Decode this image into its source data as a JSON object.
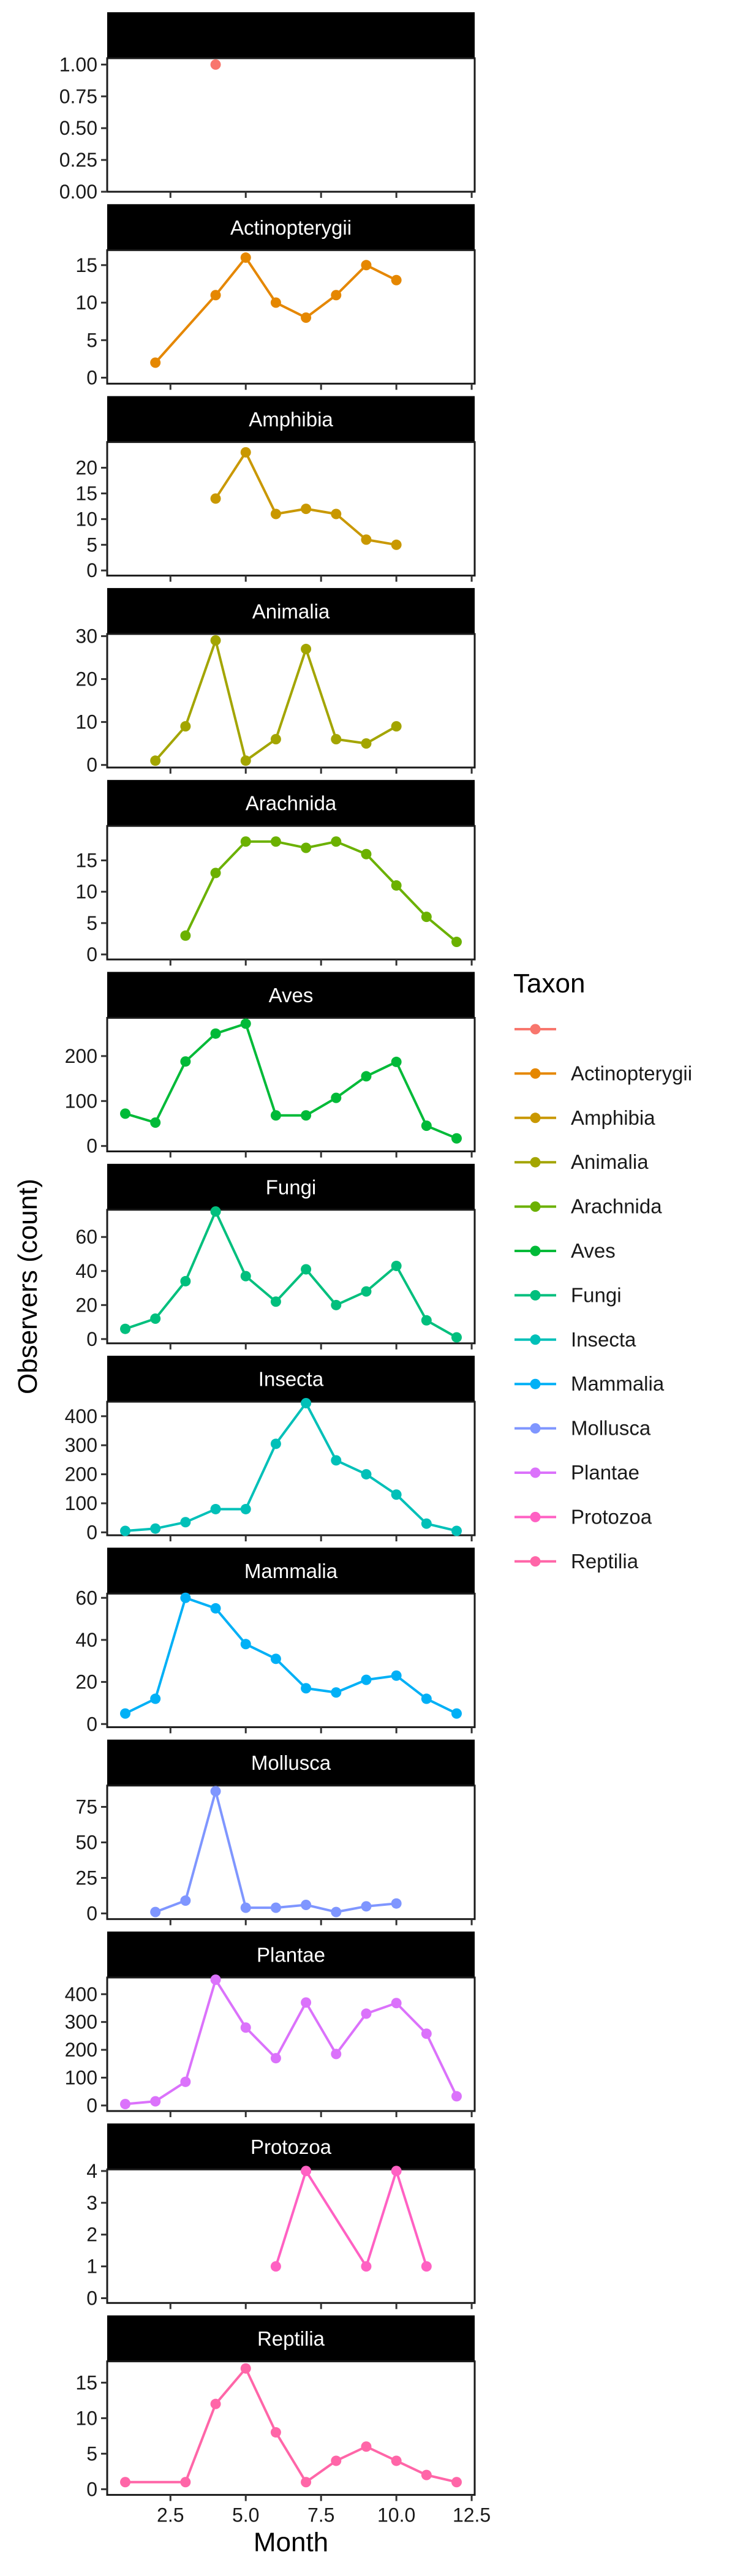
{
  "chart_data": {
    "type": "line",
    "facet_by": "Taxon",
    "xlabel": "Month",
    "ylabel": "Observers (count)",
    "x_ticks": [
      2.5,
      5.0,
      7.5,
      10.0,
      12.5
    ],
    "x_tick_labels": [
      "2.5",
      "5.0",
      "7.5",
      "10.0",
      "12.5"
    ],
    "xlim": [
      0.4,
      12.6
    ],
    "legend": {
      "title": "Taxon",
      "position": "right"
    },
    "grid": false,
    "panels": [
      {
        "name": "",
        "color": "#F8766D",
        "ylim": [
          0,
          1.05
        ],
        "ticks": [
          0,
          0.25,
          0.5,
          0.75,
          1
        ],
        "tick_labels": [
          "0.00",
          "0.25",
          "0.50",
          "0.75",
          "1.00"
        ],
        "points": [
          [
            4,
            1
          ]
        ]
      },
      {
        "name": "Actinopterygii",
        "color": "#E58700",
        "ylim": [
          -0.8,
          17
        ],
        "ticks": [
          0,
          5,
          10,
          15
        ],
        "tick_labels": [
          "0",
          "5",
          "10",
          "15"
        ],
        "points": [
          [
            2,
            2
          ],
          [
            4,
            11
          ],
          [
            5,
            16
          ],
          [
            6,
            10
          ],
          [
            7,
            8
          ],
          [
            8,
            11
          ],
          [
            9,
            15
          ],
          [
            10,
            13
          ]
        ]
      },
      {
        "name": "Amphibia",
        "color": "#C99800",
        "ylim": [
          -1,
          25
        ],
        "ticks": [
          0,
          5,
          10,
          15,
          20
        ],
        "tick_labels": [
          "0",
          "5",
          "10",
          "15",
          "20"
        ],
        "points": [
          [
            4,
            14
          ],
          [
            5,
            23
          ],
          [
            6,
            11
          ],
          [
            7,
            12
          ],
          [
            8,
            11
          ],
          [
            9,
            6
          ],
          [
            10,
            5
          ]
        ]
      },
      {
        "name": "Animalia",
        "color": "#A3A500",
        "ylim": [
          -0.6,
          30.5
        ],
        "ticks": [
          0,
          10,
          20,
          30
        ],
        "tick_labels": [
          "0",
          "10",
          "20",
          "30"
        ],
        "points": [
          [
            2,
            1
          ],
          [
            3,
            9
          ],
          [
            4,
            29
          ],
          [
            5,
            1
          ],
          [
            6,
            6
          ],
          [
            7,
            27
          ],
          [
            8,
            6
          ],
          [
            9,
            5
          ],
          [
            10,
            9
          ]
        ]
      },
      {
        "name": "Arachnida",
        "color": "#6BB100",
        "ylim": [
          -0.8,
          20.5
        ],
        "ticks": [
          0,
          5,
          10,
          15
        ],
        "tick_labels": [
          "0",
          "5",
          "10",
          "15"
        ],
        "points": [
          [
            3,
            3
          ],
          [
            4,
            13
          ],
          [
            5,
            18
          ],
          [
            6,
            18
          ],
          [
            7,
            17
          ],
          [
            8,
            18
          ],
          [
            9,
            16
          ],
          [
            10,
            11
          ],
          [
            11,
            6
          ],
          [
            12,
            2
          ]
        ]
      },
      {
        "name": "Aves",
        "color": "#00BA38",
        "ylim": [
          -12,
          285
        ],
        "ticks": [
          0,
          100,
          200
        ],
        "tick_labels": [
          "0",
          "100",
          "200"
        ],
        "points": [
          [
            1,
            72
          ],
          [
            2,
            52
          ],
          [
            3,
            188
          ],
          [
            4,
            250
          ],
          [
            5,
            272
          ],
          [
            6,
            68
          ],
          [
            7,
            68
          ],
          [
            8,
            107
          ],
          [
            9,
            155
          ],
          [
            10,
            187
          ],
          [
            11,
            45
          ],
          [
            12,
            17
          ]
        ]
      },
      {
        "name": "Fungi",
        "color": "#00BF7D",
        "ylim": [
          -2.5,
          76
        ],
        "ticks": [
          0,
          20,
          40,
          60
        ],
        "tick_labels": [
          "0",
          "20",
          "40",
          "60"
        ],
        "points": [
          [
            1,
            6
          ],
          [
            2,
            12
          ],
          [
            3,
            34
          ],
          [
            4,
            75
          ],
          [
            5,
            37
          ],
          [
            6,
            22
          ],
          [
            7,
            41
          ],
          [
            8,
            20
          ],
          [
            9,
            28
          ],
          [
            10,
            43
          ],
          [
            11,
            11
          ],
          [
            12,
            1
          ]
        ]
      },
      {
        "name": "Insecta",
        "color": "#00C0B8",
        "ylim": [
          -10,
          450
        ],
        "ticks": [
          0,
          100,
          200,
          300,
          400
        ],
        "tick_labels": [
          "0",
          "100",
          "200",
          "300",
          "400"
        ],
        "points": [
          [
            1,
            5
          ],
          [
            2,
            13
          ],
          [
            3,
            35
          ],
          [
            4,
            80
          ],
          [
            5,
            80
          ],
          [
            6,
            305
          ],
          [
            7,
            445
          ],
          [
            8,
            248
          ],
          [
            9,
            200
          ],
          [
            10,
            130
          ],
          [
            11,
            30
          ],
          [
            12,
            5
          ]
        ]
      },
      {
        "name": "Mammalia",
        "color": "#00B0F6",
        "ylim": [
          -1.5,
          62
        ],
        "ticks": [
          0,
          20,
          40,
          60
        ],
        "tick_labels": [
          "0",
          "20",
          "40",
          "60"
        ],
        "points": [
          [
            1,
            5
          ],
          [
            2,
            12
          ],
          [
            3,
            60
          ],
          [
            4,
            55
          ],
          [
            5,
            38
          ],
          [
            6,
            31
          ],
          [
            7,
            17
          ],
          [
            8,
            15
          ],
          [
            9,
            21
          ],
          [
            10,
            23
          ],
          [
            11,
            12
          ],
          [
            12,
            5
          ]
        ]
      },
      {
        "name": "Mollusca",
        "color": "#7F96FF",
        "ylim": [
          -4,
          90
        ],
        "ticks": [
          0,
          25,
          50,
          75
        ],
        "tick_labels": [
          "0",
          "25",
          "50",
          "75"
        ],
        "points": [
          [
            2,
            1
          ],
          [
            3,
            9
          ],
          [
            4,
            86
          ],
          [
            5,
            4
          ],
          [
            6,
            4
          ],
          [
            7,
            6
          ],
          [
            8,
            1
          ],
          [
            9,
            5
          ],
          [
            10,
            7
          ]
        ]
      },
      {
        "name": "Plantae",
        "color": "#DB72FB",
        "ylim": [
          -20,
          460
        ],
        "ticks": [
          0,
          100,
          200,
          300,
          400
        ],
        "tick_labels": [
          "0",
          "100",
          "200",
          "300",
          "400"
        ],
        "points": [
          [
            1,
            5
          ],
          [
            2,
            15
          ],
          [
            3,
            85
          ],
          [
            4,
            452
          ],
          [
            5,
            280
          ],
          [
            6,
            170
          ],
          [
            7,
            370
          ],
          [
            8,
            185
          ],
          [
            9,
            330
          ],
          [
            10,
            368
          ],
          [
            11,
            258
          ],
          [
            12,
            33
          ]
        ]
      },
      {
        "name": "Protozoa",
        "color": "#FF61C3",
        "ylim": [
          -0.15,
          4.05
        ],
        "ticks": [
          0,
          1,
          2,
          3,
          4
        ],
        "tick_labels": [
          "0",
          "1",
          "2",
          "3",
          "4"
        ],
        "points": [
          [
            6,
            1
          ],
          [
            7,
            4
          ],
          [
            9,
            1
          ],
          [
            10,
            4
          ],
          [
            11,
            1
          ]
        ]
      },
      {
        "name": "Reptilia",
        "color": "#FF66A8",
        "ylim": [
          -0.8,
          18
        ],
        "ticks": [
          0,
          5,
          10,
          15
        ],
        "tick_labels": [
          "0",
          "5",
          "10",
          "15"
        ],
        "points": [
          [
            1,
            1
          ],
          [
            3,
            1
          ],
          [
            4,
            12
          ],
          [
            5,
            17
          ],
          [
            6,
            8
          ],
          [
            7,
            1
          ],
          [
            8,
            4
          ],
          [
            9,
            6
          ],
          [
            10,
            4
          ],
          [
            11,
            2
          ],
          [
            12,
            1
          ]
        ]
      }
    ]
  }
}
